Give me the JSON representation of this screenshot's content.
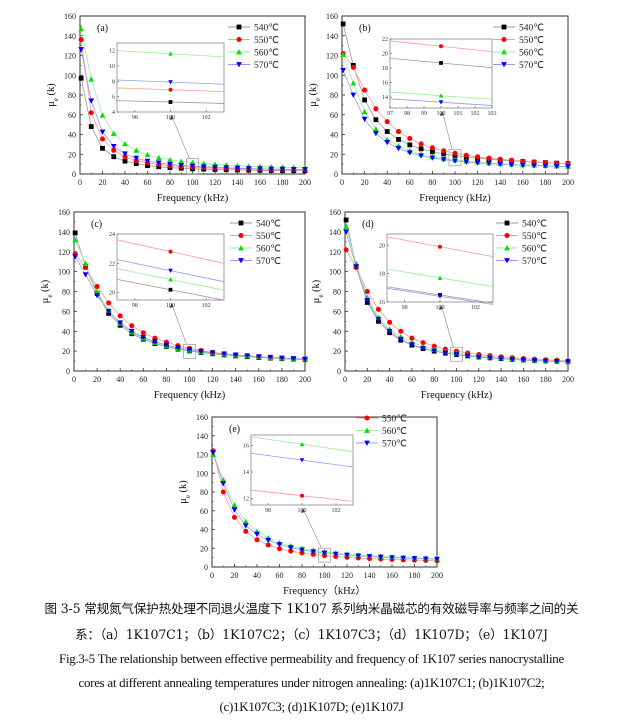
{
  "colors": {
    "540℃": "#000000",
    "550℃": "#ff0000",
    "560℃": "#00dd00",
    "570℃": "#0000ff"
  },
  "line_colors": {
    "540℃": "#999999",
    "550℃": "#ff9999",
    "560℃": "#99ee99",
    "570℃": "#9999ee"
  },
  "chart_data": [
    {
      "type": "line",
      "panel_label": "(a)",
      "xlabel": "Frequency (kHz)",
      "ylabel": "μ",
      "ylabel_sub": "e",
      "ylabel_tail": " (k)",
      "xlim": [
        0,
        200
      ],
      "ylim": [
        0,
        160
      ],
      "xticks": [
        0,
        20,
        40,
        60,
        80,
        100,
        120,
        140,
        160,
        180,
        200
      ],
      "yticks": [
        0,
        20,
        40,
        60,
        80,
        100,
        120,
        140,
        160
      ],
      "x": [
        1,
        10,
        20,
        30,
        40,
        50,
        60,
        70,
        80,
        90,
        100,
        110,
        120,
        130,
        140,
        150,
        160,
        170,
        180,
        190,
        200
      ],
      "series": [
        {
          "name": "540℃",
          "marker": "square",
          "values": [
            97,
            48,
            26,
            17.5,
            13,
            10.5,
            8.5,
            7.3,
            6.4,
            5.8,
            5.3,
            4.9,
            4.6,
            4.3,
            4.1,
            3.9,
            3.7,
            3.5,
            3.4,
            3.3,
            3.2
          ]
        },
        {
          "name": "550℃",
          "marker": "circle",
          "values": [
            136,
            62,
            35.5,
            24,
            17.5,
            13.5,
            11.3,
            9.6,
            8.4,
            7.6,
            6.9,
            6.4,
            6.0,
            5.7,
            5.4,
            5.1,
            4.9,
            4.7,
            4.5,
            4.4,
            4.3
          ]
        },
        {
          "name": "560℃",
          "marker": "triangle-up",
          "values": [
            147,
            96,
            59.5,
            41,
            30.5,
            24,
            19.5,
            16.5,
            14.3,
            12.8,
            11.6,
            10.6,
            9.8,
            9.1,
            8.5,
            8.0,
            7.6,
            7.2,
            6.9,
            6.6,
            6.3
          ]
        },
        {
          "name": "570℃",
          "marker": "triangle-down",
          "values": [
            126,
            74,
            42.5,
            28,
            20.5,
            16,
            13,
            11.2,
            9.7,
            8.7,
            7.9,
            7.3,
            6.8,
            6.3,
            5.9,
            5.6,
            5.3,
            5.1,
            4.9,
            4.7,
            4.6
          ]
        }
      ],
      "inset": {
        "xlim": [
          97,
          103
        ],
        "ylim": [
          4,
          13
        ],
        "xticks": [
          98,
          100,
          102
        ],
        "yticks": [
          4,
          6,
          8,
          10,
          12
        ],
        "values": {
          "540℃": 5.3,
          "550℃": 6.9,
          "560℃": 11.6,
          "570℃": 7.9
        }
      }
    },
    {
      "type": "line",
      "panel_label": "(b)",
      "xlabel": "Frequency (kHz)",
      "ylabel": "μ",
      "ylabel_sub": "e",
      "ylabel_tail": " (k)",
      "xlim": [
        0,
        200
      ],
      "ylim": [
        0,
        160
      ],
      "xticks": [
        0,
        20,
        40,
        60,
        80,
        100,
        120,
        140,
        160,
        180,
        200
      ],
      "yticks": [
        0,
        20,
        40,
        60,
        80,
        100,
        120,
        140,
        160
      ],
      "x": [
        1,
        10,
        20,
        30,
        40,
        50,
        60,
        70,
        80,
        90,
        100,
        110,
        120,
        130,
        140,
        150,
        160,
        170,
        180,
        190,
        200
      ],
      "series": [
        {
          "name": "540℃",
          "marker": "square",
          "values": [
            152,
            110,
            75,
            55,
            43,
            35,
            29.5,
            25.5,
            22.5,
            20.3,
            18.7,
            17.2,
            16,
            15,
            14.1,
            13.3,
            12.6,
            12,
            11.5,
            11,
            10.6
          ]
        },
        {
          "name": "550℃",
          "marker": "circle",
          "values": [
            122,
            108,
            85,
            66,
            53,
            43,
            36,
            30.5,
            26.5,
            23.5,
            21,
            19,
            17.4,
            16,
            14.9,
            13.9,
            13,
            12.3,
            11.6,
            11,
            10.5
          ]
        },
        {
          "name": "560℃",
          "marker": "triangle-up",
          "values": [
            121,
            92,
            63,
            45.5,
            35,
            28.5,
            23.5,
            20,
            17.5,
            15.7,
            14.2,
            13,
            12,
            11.2,
            10.5,
            9.9,
            9.3,
            8.9,
            8.5,
            8.1,
            7.8
          ]
        },
        {
          "name": "570℃",
          "marker": "triangle-down",
          "values": [
            105,
            80,
            55.5,
            41,
            32,
            26,
            21.5,
            18.5,
            16.3,
            14.6,
            13.3,
            12.2,
            11.3,
            10.6,
            9.9,
            9.4,
            8.9,
            8.5,
            8.1,
            7.8,
            7.5
          ]
        }
      ],
      "inset": {
        "xlim": [
          97,
          103
        ],
        "ylim": [
          12.5,
          22
        ],
        "xticks": [
          97,
          98,
          99,
          100,
          101,
          102,
          103
        ],
        "yticks": [
          14,
          16,
          18,
          20,
          22
        ],
        "values": {
          "540℃": 18.7,
          "550℃": 21,
          "560℃": 14.2,
          "570℃": 13.3
        }
      }
    },
    {
      "type": "line",
      "panel_label": "(c)",
      "xlabel": "Frequency (kHz)",
      "ylabel": "μ",
      "ylabel_sub": "e",
      "ylabel_tail": " (k)",
      "xlim": [
        0,
        200
      ],
      "ylim": [
        0,
        160
      ],
      "xticks": [
        0,
        20,
        40,
        60,
        80,
        100,
        120,
        140,
        160,
        180,
        200
      ],
      "yticks": [
        0,
        20,
        40,
        60,
        80,
        100,
        120,
        140,
        160
      ],
      "x": [
        1,
        10,
        20,
        30,
        40,
        50,
        60,
        70,
        80,
        90,
        100,
        110,
        120,
        130,
        140,
        150,
        160,
        170,
        180,
        190,
        200
      ],
      "series": [
        {
          "name": "540℃",
          "marker": "square",
          "values": [
            139,
            105,
            78,
            58,
            46,
            37.5,
            32,
            27.5,
            24.5,
            22,
            20.2,
            18.6,
            17.3,
            16.2,
            15.2,
            14.4,
            13.6,
            13,
            12.4,
            11.9,
            11.4
          ]
        },
        {
          "name": "550℃",
          "marker": "circle",
          "values": [
            118,
            104,
            85,
            68.5,
            55.5,
            45.5,
            38.5,
            33,
            29,
            25.5,
            22.8,
            20.6,
            18.8,
            17.4,
            16.2,
            15.2,
            14.3,
            13.5,
            12.8,
            12.2,
            11.7
          ]
        },
        {
          "name": "560℃",
          "marker": "triangle-up",
          "values": [
            132,
            108,
            80,
            61,
            48,
            39,
            33,
            28.5,
            25,
            22.7,
            20.9,
            19.3,
            18,
            16.9,
            15.9,
            15,
            14.2,
            13.5,
            12.9,
            12.3,
            11.8
          ]
        },
        {
          "name": "570℃",
          "marker": "triangle-down",
          "values": [
            115,
            97,
            76,
            60,
            48.5,
            40,
            34,
            29.5,
            26,
            23.5,
            21.5,
            19.8,
            18.4,
            17.2,
            16.2,
            15.3,
            14.5,
            13.8,
            13.1,
            12.5,
            12
          ]
        }
      ],
      "inset": {
        "xlim": [
          97,
          103
        ],
        "ylim": [
          19.5,
          24
        ],
        "xticks": [
          98,
          100,
          102
        ],
        "yticks": [
          20,
          22,
          24
        ],
        "values": {
          "540℃": 20.2,
          "550℃": 22.8,
          "560℃": 20.9,
          "570℃": 21.5
        }
      }
    },
    {
      "type": "line",
      "panel_label": "(d)",
      "xlabel": "Frequency (kHz)",
      "ylabel": "μ",
      "ylabel_sub": "e",
      "ylabel_tail": " (k)",
      "xlim": [
        0,
        200
      ],
      "ylim": [
        0,
        160
      ],
      "xticks": [
        0,
        20,
        40,
        60,
        80,
        100,
        120,
        140,
        160,
        180,
        200
      ],
      "yticks": [
        0,
        20,
        40,
        60,
        80,
        100,
        120,
        140,
        160
      ],
      "x": [
        1,
        10,
        20,
        30,
        40,
        50,
        60,
        70,
        80,
        90,
        100,
        110,
        120,
        130,
        140,
        150,
        160,
        170,
        180,
        190,
        200
      ],
      "series": [
        {
          "name": "540℃",
          "marker": "square",
          "values": [
            152,
            105,
            69,
            50,
            38.5,
            31,
            26,
            22.5,
            20,
            18,
            16.5,
            15.2,
            14.1,
            13.2,
            12.4,
            11.7,
            11.1,
            10.6,
            10.1,
            9.7,
            9.3
          ]
        },
        {
          "name": "550℃",
          "marker": "circle",
          "values": [
            122,
            104,
            80,
            62,
            49,
            40,
            33,
            28.5,
            25,
            22,
            19.9,
            18.1,
            16.6,
            15.4,
            14.3,
            13.4,
            12.6,
            11.9,
            11.3,
            10.8,
            10.3
          ]
        },
        {
          "name": "560℃",
          "marker": "triangle-up",
          "values": [
            145,
            108,
            74,
            54,
            42,
            34.5,
            28.8,
            24.8,
            21.8,
            19.5,
            17.7,
            16.2,
            15,
            13.9,
            13,
            12.2,
            11.5,
            10.9,
            10.4,
            9.9,
            9.5
          ]
        },
        {
          "name": "570℃",
          "marker": "triangle-down",
          "values": [
            140,
            105,
            71,
            52,
            40,
            32,
            26.5,
            22.8,
            20.2,
            18.1,
            16.4,
            15.1,
            14,
            13.1,
            12.3,
            11.6,
            11,
            10.5,
            10,
            9.6,
            9.2
          ]
        }
      ],
      "inset": {
        "xlim": [
          97,
          103
        ],
        "ylim": [
          16,
          20.8
        ],
        "xticks": [
          98,
          100,
          102
        ],
        "yticks": [
          16,
          18,
          20
        ],
        "values": {
          "540℃": 16.5,
          "550℃": 19.9,
          "560℃": 17.7,
          "570℃": 16.4
        }
      }
    },
    {
      "type": "line",
      "panel_label": "(e)",
      "xlabel": "Frequency（kHz）",
      "ylabel": "μ",
      "ylabel_sub": "e",
      "ylabel_tail": " (k)",
      "xlim": [
        0,
        200
      ],
      "ylim": [
        0,
        160
      ],
      "xticks": [
        0,
        20,
        40,
        60,
        80,
        100,
        120,
        140,
        160,
        180,
        200
      ],
      "yticks": [
        0,
        20,
        40,
        60,
        80,
        100,
        120,
        140,
        160
      ],
      "x": [
        1,
        10,
        20,
        30,
        40,
        50,
        60,
        70,
        80,
        90,
        100,
        110,
        120,
        130,
        140,
        150,
        160,
        170,
        180,
        190,
        200
      ],
      "series": [
        {
          "name": "550℃",
          "marker": "circle",
          "values": [
            124,
            80,
            53,
            38,
            29,
            23.5,
            19.5,
            17,
            15,
            13.5,
            12.2,
            11.2,
            10.3,
            9.6,
            9,
            8.5,
            8,
            7.6,
            7.3,
            7,
            6.7
          ]
        },
        {
          "name": "560℃",
          "marker": "triangle-up",
          "values": [
            120,
            93,
            66,
            48.5,
            38,
            31,
            26,
            22.5,
            19.7,
            17.7,
            16.1,
            14.8,
            13.7,
            12.8,
            12,
            11.3,
            10.7,
            10.2,
            9.7,
            9.3,
            8.9
          ]
        },
        {
          "name": "570℃",
          "marker": "triangle-down",
          "values": [
            122,
            89,
            61,
            44,
            35,
            28.5,
            24,
            20.7,
            18.2,
            16.4,
            14.9,
            13.7,
            12.7,
            11.9,
            11.2,
            10.6,
            10,
            9.5,
            9.1,
            8.7,
            8.4
          ]
        }
      ],
      "inset": {
        "xlim": [
          97,
          103
        ],
        "ylim": [
          11.5,
          16.8
        ],
        "xticks": [
          98,
          100,
          102
        ],
        "yticks": [
          12,
          14,
          16
        ],
        "values": {
          "550℃": 12.2,
          "560℃": 16.1,
          "570℃": 14.9
        }
      }
    }
  ],
  "caption": {
    "zh_line1": "图 3-5  常规氮气保护热处理不同退火温度下 1K107 系列纳米晶磁芯的有效磁导率与频率之间的关",
    "zh_line2": "系：（a）1K107C1；（b）1K107C2；（c）1K107C3；（d）1K107D；（e）1K107J",
    "en_line1": "Fig.3-5 The relationship between effective permeability and frequency of 1K107 series nanocrystalline",
    "en_line2": "cores at different annealing temperatures under nitrogen annealing: (a)1K107C1; (b)1K107C2;",
    "en_line3": "(c)1K107C3; (d)1K107D; (e)1K107J"
  }
}
